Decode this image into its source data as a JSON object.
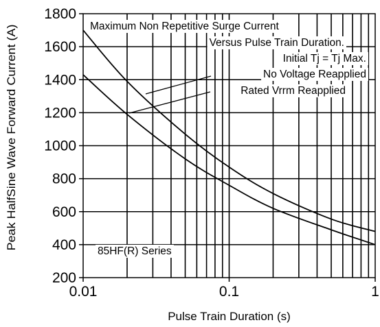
{
  "chart_data": {
    "type": "line",
    "x_scale": "log",
    "y_scale": "linear",
    "xlim": [
      0.01,
      1
    ],
    "ylim": [
      200,
      1800
    ],
    "grid": true,
    "xlabel": "Pulse Train Duration (s)",
    "ylabel": "Peak HalfSine Wave Forward Current (A)",
    "x_ticks": [
      0.01,
      0.1,
      1
    ],
    "x_tick_labels": [
      "0.01",
      "0.1",
      "1"
    ],
    "y_ticks": [
      200,
      400,
      600,
      800,
      1000,
      1200,
      1400,
      1600,
      1800
    ],
    "y_tick_labels": [
      "200",
      "400",
      "600",
      "800",
      "1000",
      "1200",
      "1400",
      "1600",
      "1800"
    ],
    "series": [
      {
        "name": "No Voltage Reapplied",
        "x": [
          0.01,
          0.02,
          0.05,
          0.1,
          0.2,
          0.5,
          1
        ],
        "y": [
          1700,
          1390,
          1070,
          870,
          710,
          555,
          480
        ]
      },
      {
        "name": "Rated Vrrm Reapplied",
        "x": [
          0.01,
          0.02,
          0.05,
          0.1,
          0.2,
          0.5,
          1
        ],
        "y": [
          1430,
          1190,
          920,
          760,
          620,
          490,
          400
        ]
      }
    ],
    "annotations": [
      "Maximum Non Repetitive Surge Current",
      "Versus Pulse Train Duration.",
      "Initial Tj  = Tj  Max.",
      "No Voltage Reapplied",
      "Rated Vrrm Reapplied",
      "85HF(R) Series"
    ]
  }
}
